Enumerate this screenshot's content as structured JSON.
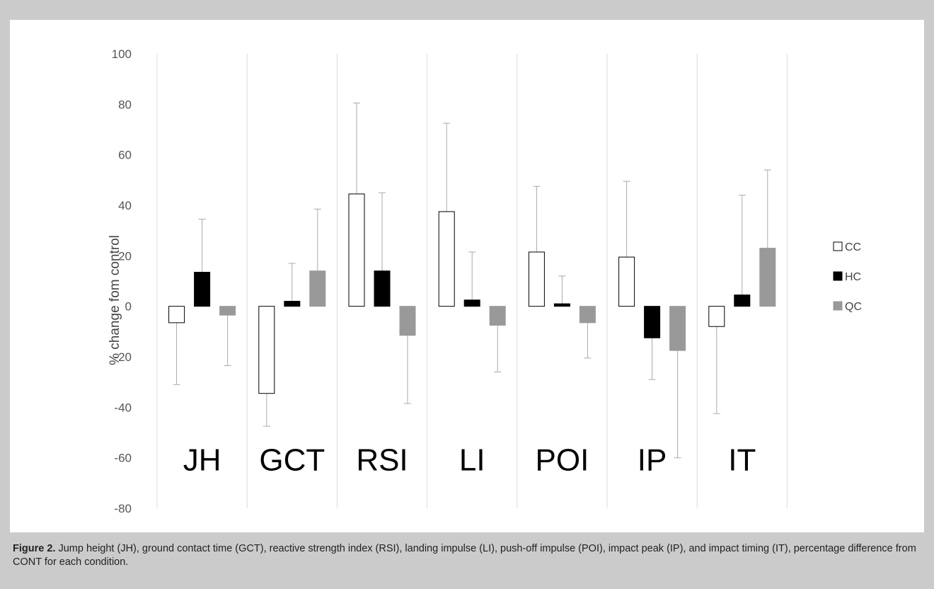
{
  "caption": {
    "label": "Figure 2.",
    "text": "Jump height (JH), ground contact time (GCT), reactive strength index (RSI), landing impulse (LI), push-off impulse (POI), impact peak (IP), and impact timing (IT), percentage difference from CONT for each condition."
  },
  "chart_data": {
    "type": "bar",
    "title": "",
    "xlabel": "",
    "ylabel": "% change fom control",
    "ylim": [
      -80,
      100
    ],
    "yticks": [
      100,
      80,
      60,
      40,
      20,
      0,
      -20,
      -40,
      -60,
      -80
    ],
    "categories": [
      "JH",
      "GCT",
      "RSI",
      "LI",
      "POI",
      "IP",
      "IT"
    ],
    "series": [
      {
        "name": "CC",
        "color": "#ffffff",
        "values": [
          -6.5,
          -34.5,
          44.5,
          37.5,
          21.5,
          19.5,
          -8
        ],
        "error_ends": [
          -31,
          -47.5,
          80.5,
          72.5,
          47.5,
          49.5,
          -42.5
        ]
      },
      {
        "name": "HC",
        "color": "#000000",
        "values": [
          13.5,
          2,
          14,
          2.5,
          1,
          -12.5,
          4.5
        ],
        "error_ends": [
          34.5,
          17,
          45,
          21.5,
          12,
          -29,
          44
        ]
      },
      {
        "name": "QC",
        "color": "#999999",
        "values": [
          -3.5,
          14,
          -11.5,
          -7.5,
          -6.5,
          -17.5,
          23
        ],
        "error_ends": [
          -23.5,
          38.5,
          -38.5,
          -26,
          -20.5,
          -60,
          54
        ]
      }
    ],
    "grid": "vertical-separators",
    "legend_position": "right"
  }
}
